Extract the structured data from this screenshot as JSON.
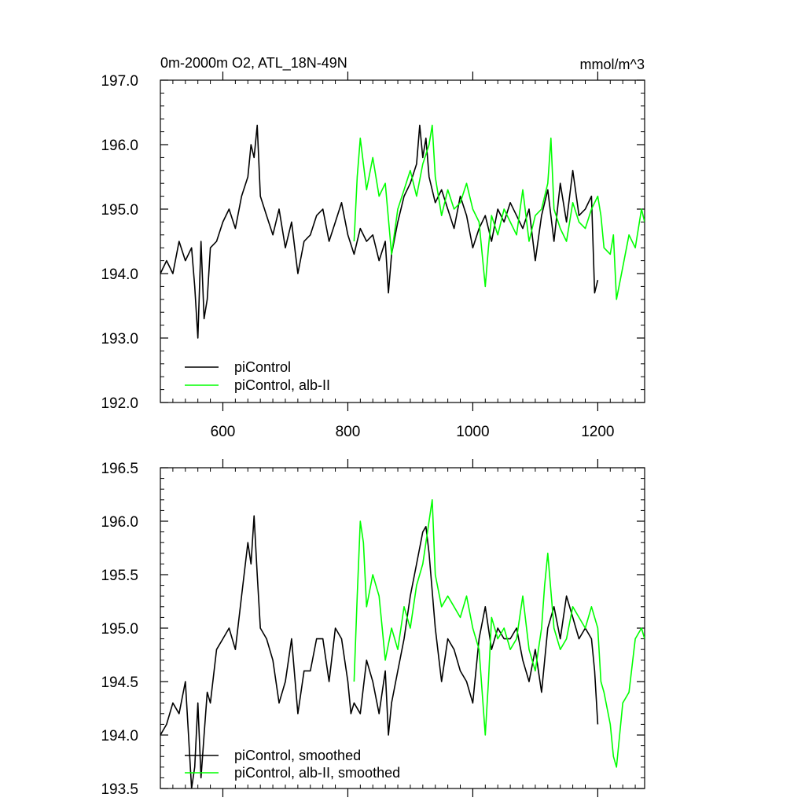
{
  "colors": {
    "background": "#ffffff",
    "axis": "#000000",
    "picontrol": "#000000",
    "alb_ii": "#00ff00"
  },
  "chart_data": [
    {
      "type": "line",
      "title": "0m-2000m O2, ATL_18N-49N",
      "units": "mmol/m^3",
      "xlim": [
        500,
        1275
      ],
      "ylim": [
        192.0,
        197.0
      ],
      "xticks": [
        600,
        800,
        1000,
        1200
      ],
      "xtick_labels": [
        "600",
        "800",
        "1000",
        "1200"
      ],
      "yticks": [
        192.0,
        193.0,
        194.0,
        195.0,
        196.0,
        197.0
      ],
      "ytick_labels": [
        "192.0",
        "193.0",
        "194.0",
        "195.0",
        "196.0",
        "197.0"
      ],
      "grid": false,
      "legend_position": "bottom-left",
      "series": [
        {
          "name": "piControl",
          "color": "#000000",
          "x": [
            500,
            510,
            520,
            530,
            540,
            550,
            555,
            560,
            565,
            570,
            575,
            580,
            590,
            600,
            610,
            620,
            630,
            640,
            645,
            650,
            655,
            660,
            670,
            680,
            690,
            700,
            710,
            720,
            730,
            740,
            750,
            760,
            770,
            780,
            790,
            800,
            810,
            820,
            830,
            840,
            850,
            860,
            865,
            870,
            880,
            890,
            900,
            910,
            915,
            920,
            925,
            930,
            940,
            950,
            960,
            970,
            980,
            990,
            1000,
            1010,
            1020,
            1030,
            1040,
            1050,
            1060,
            1070,
            1080,
            1090,
            1100,
            1110,
            1120,
            1130,
            1140,
            1150,
            1160,
            1170,
            1180,
            1190,
            1195,
            1200
          ],
          "y": [
            194.0,
            194.2,
            194.0,
            194.5,
            194.2,
            194.4,
            193.8,
            193.0,
            194.5,
            193.3,
            193.6,
            194.4,
            194.5,
            194.8,
            195.0,
            194.7,
            195.2,
            195.5,
            196.0,
            195.8,
            196.3,
            195.2,
            194.9,
            194.6,
            195.0,
            194.4,
            194.8,
            194.0,
            194.5,
            194.6,
            194.9,
            195.0,
            194.5,
            194.8,
            195.1,
            194.6,
            194.3,
            194.7,
            194.5,
            194.6,
            194.2,
            194.5,
            193.7,
            194.3,
            194.8,
            195.2,
            195.4,
            195.7,
            196.3,
            195.8,
            196.1,
            195.5,
            195.1,
            195.3,
            195.0,
            194.7,
            195.2,
            194.9,
            194.4,
            194.7,
            194.9,
            194.5,
            195.0,
            194.8,
            195.1,
            194.9,
            194.7,
            195.0,
            194.2,
            194.9,
            195.3,
            194.5,
            195.4,
            194.8,
            195.6,
            194.9,
            195.0,
            195.2,
            193.7,
            193.9
          ]
        },
        {
          "name": "piControl, alb-II",
          "color": "#00ff00",
          "x": [
            810,
            815,
            820,
            825,
            830,
            840,
            850,
            860,
            870,
            880,
            890,
            900,
            910,
            920,
            930,
            935,
            940,
            950,
            960,
            970,
            980,
            990,
            1000,
            1010,
            1020,
            1025,
            1030,
            1040,
            1050,
            1060,
            1070,
            1080,
            1090,
            1100,
            1110,
            1120,
            1125,
            1130,
            1140,
            1150,
            1160,
            1170,
            1180,
            1190,
            1200,
            1205,
            1210,
            1220,
            1225,
            1230,
            1240,
            1250,
            1260,
            1270,
            1275
          ],
          "y": [
            194.5,
            195.5,
            196.1,
            195.7,
            195.3,
            195.8,
            195.2,
            195.4,
            194.3,
            195.0,
            195.3,
            195.6,
            195.2,
            195.7,
            196.0,
            196.3,
            195.5,
            194.9,
            195.3,
            195.0,
            195.1,
            195.4,
            195.0,
            194.8,
            193.8,
            194.4,
            194.9,
            194.6,
            195.0,
            194.8,
            194.6,
            195.3,
            194.5,
            194.9,
            195.0,
            195.4,
            196.1,
            195.0,
            194.7,
            194.5,
            195.1,
            194.8,
            194.7,
            195.0,
            195.2,
            194.9,
            194.4,
            194.3,
            194.6,
            193.6,
            194.1,
            194.6,
            194.4,
            195.0,
            194.8
          ]
        }
      ],
      "legend": [
        "piControl",
        "piControl, alb-II"
      ]
    },
    {
      "type": "line",
      "title": "",
      "xlim": [
        500,
        1275
      ],
      "ylim": [
        193.5,
        196.5
      ],
      "xticks": [
        600,
        800,
        1000,
        1200
      ],
      "yticks": [
        193.5,
        194.0,
        194.5,
        195.0,
        195.5,
        196.0,
        196.5
      ],
      "ytick_labels": [
        "193.5",
        "194.0",
        "194.5",
        "195.0",
        "195.5",
        "196.0",
        "196.5"
      ],
      "grid": false,
      "legend_position": "bottom-left",
      "series": [
        {
          "name": "piControl, smoothed",
          "color": "#000000",
          "x": [
            500,
            510,
            520,
            530,
            540,
            545,
            550,
            555,
            560,
            565,
            570,
            575,
            580,
            590,
            600,
            610,
            620,
            630,
            640,
            645,
            650,
            655,
            660,
            670,
            680,
            690,
            700,
            710,
            720,
            730,
            740,
            750,
            760,
            770,
            780,
            790,
            800,
            805,
            810,
            820,
            830,
            840,
            850,
            860,
            865,
            870,
            880,
            890,
            900,
            910,
            920,
            925,
            930,
            940,
            950,
            960,
            970,
            980,
            990,
            1000,
            1010,
            1020,
            1030,
            1040,
            1050,
            1060,
            1070,
            1080,
            1090,
            1100,
            1110,
            1120,
            1130,
            1140,
            1150,
            1160,
            1170,
            1180,
            1190,
            1195,
            1200
          ],
          "y": [
            194.0,
            194.1,
            194.3,
            194.2,
            194.5,
            194.0,
            193.5,
            193.7,
            194.3,
            193.6,
            194.0,
            194.4,
            194.3,
            194.8,
            194.9,
            195.0,
            194.8,
            195.3,
            195.8,
            195.6,
            196.05,
            195.5,
            195.0,
            194.9,
            194.7,
            194.3,
            194.5,
            194.9,
            194.2,
            194.6,
            194.6,
            194.9,
            194.9,
            194.5,
            195.0,
            194.9,
            194.5,
            194.2,
            194.3,
            194.2,
            194.7,
            194.5,
            194.2,
            194.6,
            194.0,
            194.3,
            194.6,
            194.9,
            195.3,
            195.6,
            195.9,
            195.95,
            195.7,
            195.0,
            194.5,
            194.9,
            194.8,
            194.6,
            194.5,
            194.3,
            194.9,
            195.2,
            194.8,
            195.0,
            194.9,
            194.9,
            195.0,
            194.7,
            194.5,
            194.8,
            194.4,
            195.0,
            195.2,
            194.9,
            195.3,
            195.1,
            194.9,
            195.0,
            194.9,
            194.6,
            194.1
          ]
        },
        {
          "name": "piControl, alb-II, smoothed",
          "color": "#00ff00",
          "x": [
            810,
            815,
            820,
            825,
            830,
            840,
            850,
            855,
            860,
            870,
            880,
            890,
            900,
            910,
            920,
            930,
            935,
            940,
            950,
            960,
            970,
            980,
            990,
            1000,
            1010,
            1020,
            1025,
            1030,
            1040,
            1050,
            1060,
            1070,
            1080,
            1090,
            1100,
            1110,
            1115,
            1120,
            1130,
            1140,
            1150,
            1160,
            1170,
            1180,
            1190,
            1200,
            1205,
            1210,
            1220,
            1225,
            1230,
            1240,
            1250,
            1260,
            1270,
            1275
          ],
          "y": [
            194.5,
            195.3,
            196.0,
            195.8,
            195.2,
            195.5,
            195.3,
            195.0,
            194.7,
            195.0,
            194.8,
            195.2,
            195.0,
            195.4,
            195.6,
            196.0,
            196.2,
            195.5,
            195.2,
            195.3,
            195.2,
            195.1,
            195.3,
            195.0,
            194.8,
            194.0,
            194.5,
            195.1,
            194.9,
            195.0,
            194.8,
            194.9,
            195.3,
            194.8,
            194.6,
            195.0,
            195.4,
            195.7,
            195.0,
            194.8,
            194.9,
            195.2,
            195.1,
            195.0,
            195.2,
            195.0,
            194.5,
            194.4,
            194.1,
            193.8,
            193.7,
            194.3,
            194.4,
            194.9,
            195.0,
            194.9
          ]
        }
      ],
      "legend": [
        "piControl, smoothed",
        "piControl, alb-II, smoothed"
      ]
    }
  ]
}
